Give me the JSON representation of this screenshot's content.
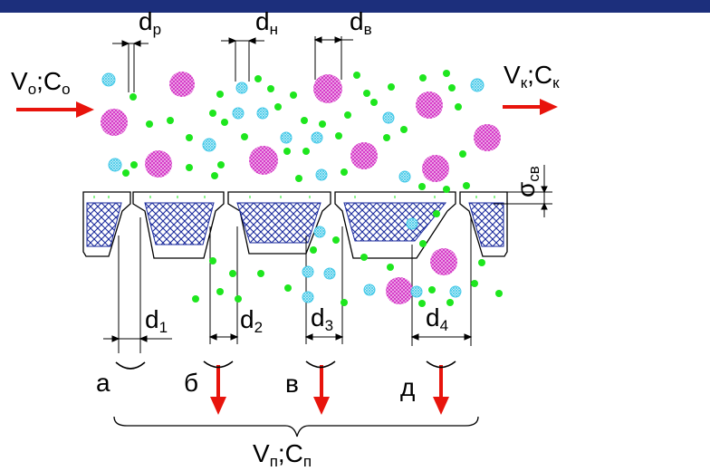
{
  "colors": {
    "top_bar": "#1c2f7c",
    "arrow": "#e8140c",
    "large_particle": "#d63cc8",
    "medium_particle": "#40c8e8",
    "small_particle": "#1ee61e",
    "hatch": "#1a2a9c"
  },
  "labels": {
    "inflow": {
      "main": "V",
      "sub1": "o",
      "mid": ";C",
      "sub2": "o"
    },
    "outflow": {
      "main": "V",
      "sub1": "к",
      "mid": ";C",
      "sub2": "к"
    },
    "permeate": {
      "main": "V",
      "sub1": "п",
      "mid": ";C",
      "sub2": "п"
    },
    "particle_small": {
      "main": "d",
      "sub": "р"
    },
    "particle_medium": {
      "main": "d",
      "sub": "н"
    },
    "particle_large": {
      "main": "d",
      "sub": "в"
    },
    "layer_thickness": {
      "main": "σ",
      "sub": "св"
    },
    "pores": [
      {
        "main": "d",
        "sub": "1"
      },
      {
        "main": "d",
        "sub": "2"
      },
      {
        "main": "d",
        "sub": "3"
      },
      {
        "main": "d",
        "sub": "4"
      }
    ],
    "cases": [
      "а",
      "б",
      "в",
      "д"
    ]
  },
  "icons": {
    "inflow_arrow": "arrow-right-icon",
    "outflow_arrow": "arrow-right-icon",
    "permeate_arrows": "arrow-down-icon"
  }
}
